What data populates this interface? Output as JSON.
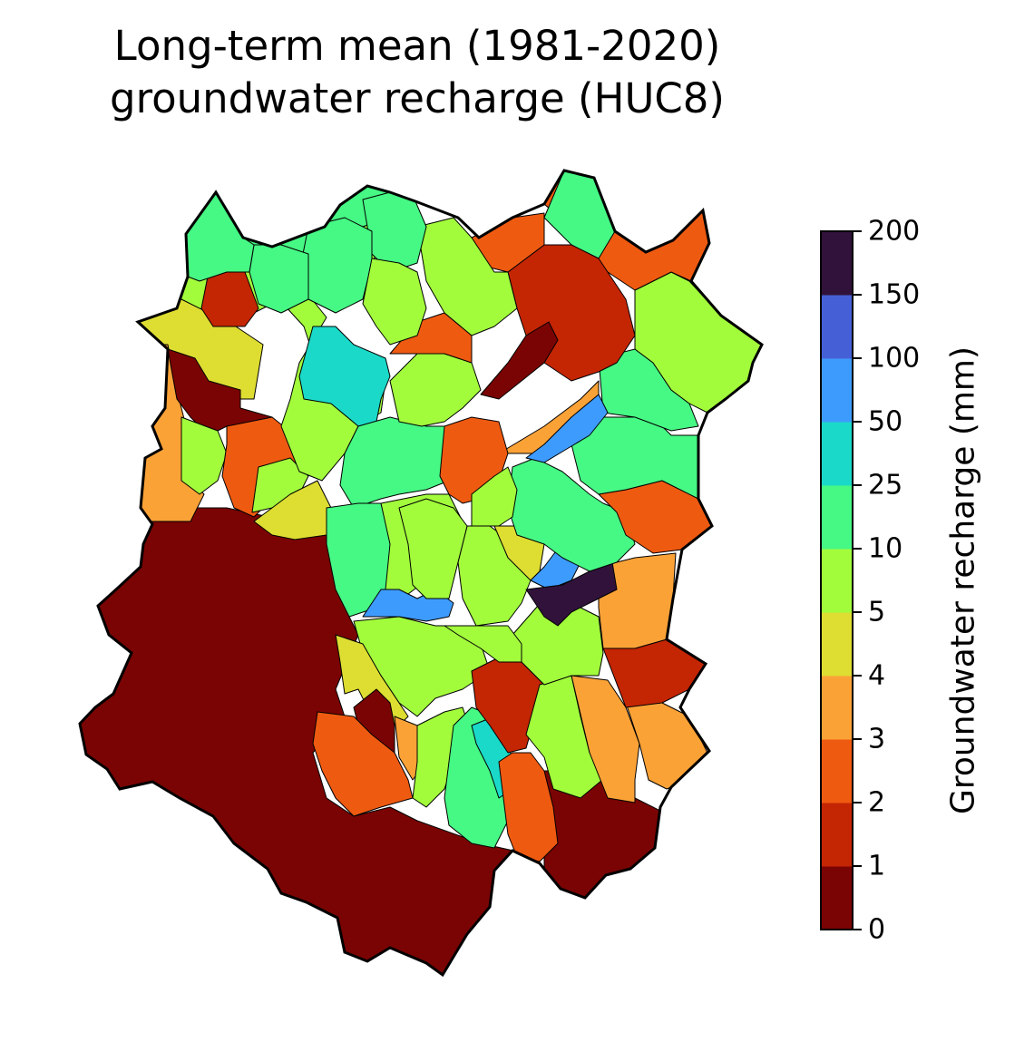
{
  "title": {
    "line1": "Long-term mean (1981-2020)",
    "line2": "groundwater recharge (HUC8)"
  },
  "colorbar": {
    "label": "Groundwater recharge (mm)",
    "ticks": [
      "0",
      "1",
      "2",
      "3",
      "4",
      "5",
      "10",
      "25",
      "50",
      "100",
      "150",
      "200"
    ],
    "bins": [
      {
        "from": "0",
        "to": "1",
        "color": "#7a0403"
      },
      {
        "from": "1",
        "to": "2",
        "color": "#c42503"
      },
      {
        "from": "2",
        "to": "3",
        "color": "#ef5a11"
      },
      {
        "from": "3",
        "to": "4",
        "color": "#fba237"
      },
      {
        "from": "4",
        "to": "5",
        "color": "#dedd32"
      },
      {
        "from": "5",
        "to": "10",
        "color": "#a2fc3c"
      },
      {
        "from": "10",
        "to": "25",
        "color": "#46f884"
      },
      {
        "from": "25",
        "to": "50",
        "color": "#1ad9c8"
      },
      {
        "from": "50",
        "to": "100",
        "color": "#3e9bfe"
      },
      {
        "from": "100",
        "to": "150",
        "color": "#4560d6"
      },
      {
        "from": "150",
        "to": "200",
        "color": "#30123b"
      }
    ]
  },
  "map": {
    "unit_type": "HUC8",
    "boundary_color": "#000000",
    "background_class": "0-1 mm",
    "dominant_classes": [
      "0-1 mm",
      "1-2 mm",
      "2-3 mm",
      "3-4 mm",
      "4-5 mm",
      "5-10 mm",
      "10-25 mm",
      "25-50 mm",
      "50-100 mm",
      "150-200 mm"
    ]
  }
}
